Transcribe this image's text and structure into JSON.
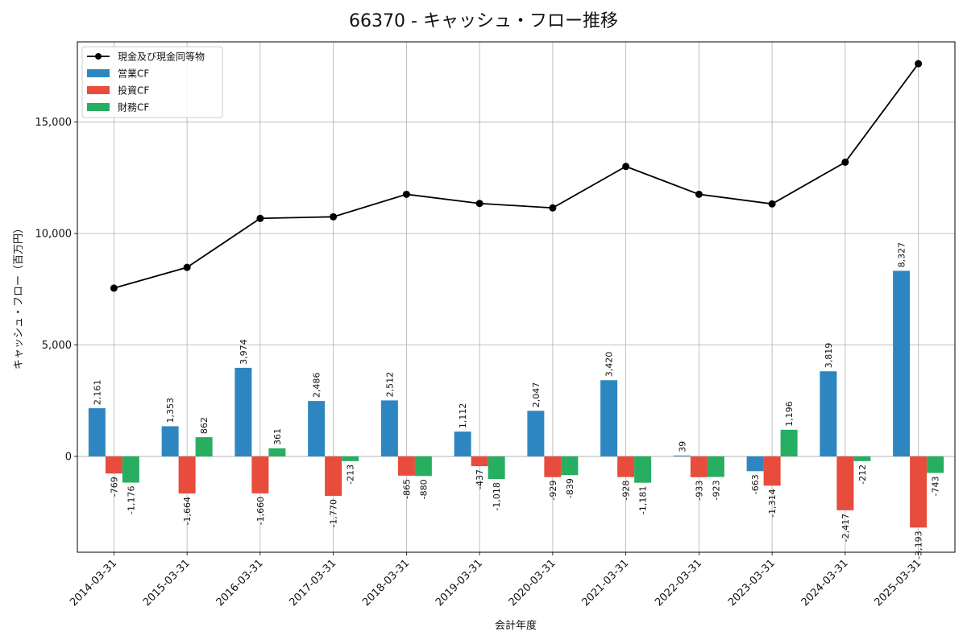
{
  "chart_data": {
    "type": "bar",
    "title": "66370 - キャッシュ・フロー推移",
    "xlabel": "会計年度",
    "ylabel": "キャッシュ・フロー（百万円）",
    "categories": [
      "2014-03-31",
      "2015-03-31",
      "2016-03-31",
      "2017-03-31",
      "2018-03-31",
      "2019-03-31",
      "2020-03-31",
      "2021-03-31",
      "2022-03-31",
      "2023-03-31",
      "2024-03-31",
      "2025-03-31"
    ],
    "series": [
      {
        "name": "営業CF",
        "type": "bar",
        "color": "#2e86c1",
        "values": [
          2161,
          1353,
          3974,
          2486,
          2512,
          1112,
          2047,
          3420,
          39,
          -663,
          3819,
          8327
        ],
        "labels": [
          "2,161",
          "1,353",
          "3,974",
          "2,486",
          "2,512",
          "1,112",
          "2,047",
          "3,420",
          "39",
          "-663",
          "3,819",
          "8,327"
        ]
      },
      {
        "name": "投資CF",
        "type": "bar",
        "color": "#e74c3c",
        "values": [
          -769,
          -1664,
          -1660,
          -1770,
          -865,
          -437,
          -929,
          -928,
          -933,
          -1314,
          -2417,
          -3193
        ],
        "labels": [
          "-769",
          "-1,664",
          "-1,660",
          "-1,770",
          "-865",
          "-437",
          "-929",
          "-928",
          "-933",
          "-1,314",
          "-2,417",
          "-3,193"
        ]
      },
      {
        "name": "財務CF",
        "type": "bar",
        "color": "#27ae60",
        "values": [
          -1176,
          862,
          361,
          -213,
          -880,
          -1018,
          -839,
          -1181,
          -923,
          1196,
          -212,
          -743
        ],
        "labels": [
          "-1,176",
          "862",
          "361",
          "-213",
          "-880",
          "-1,018",
          "-839",
          "-1,181",
          "-923",
          "1,196",
          "-212",
          "-743"
        ]
      },
      {
        "name": "現金及び現金同等物",
        "type": "line",
        "color": "#000000",
        "values": [
          7550,
          8480,
          10680,
          10750,
          11760,
          11350,
          11150,
          13010,
          11760,
          11330,
          13200,
          17620
        ]
      }
    ],
    "yticks": [
      0,
      5000,
      10000,
      15000
    ],
    "ytick_labels": [
      "0",
      "5,000",
      "10,000",
      "15,000"
    ],
    "ylim": [
      -4300,
      18600
    ],
    "grid": true,
    "legend": "top-left"
  }
}
